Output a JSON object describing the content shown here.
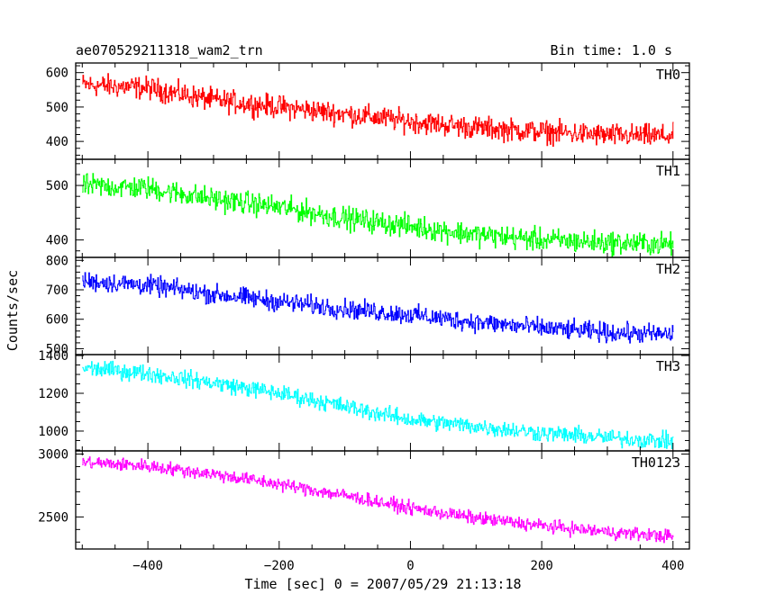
{
  "chart_data": {
    "type": "line",
    "title": "ae070529211318_wam2_trn",
    "bin_time": "Bin time: 1.0 s",
    "xlabel": "Time [sec] 0 = 2007/05/29 21:13:18",
    "ylabel": "Counts/sec",
    "xlim": [
      -510,
      425
    ],
    "x_start": -500,
    "x_end": 400,
    "x_ticks": [
      -400,
      -200,
      0,
      200,
      400
    ],
    "grid": false,
    "series": [
      {
        "name": "TH0",
        "color": "#ff0000",
        "ylim": [
          348,
          628
        ],
        "y_ticks": [
          400,
          500,
          600
        ],
        "trend": [
          [
            -500,
            565
          ],
          [
            -400,
            555
          ],
          [
            -300,
            520
          ],
          [
            -200,
            500
          ],
          [
            -100,
            480
          ],
          [
            0,
            458
          ],
          [
            100,
            440
          ],
          [
            200,
            428
          ],
          [
            300,
            418
          ],
          [
            400,
            415
          ]
        ],
        "noise": 28
      },
      {
        "name": "TH1",
        "color": "#00ff00",
        "ylim": [
          368,
          548
        ],
        "y_ticks": [
          400,
          500
        ],
        "trend": [
          [
            -500,
            500
          ],
          [
            -400,
            495
          ],
          [
            -300,
            475
          ],
          [
            -200,
            460
          ],
          [
            -100,
            440
          ],
          [
            0,
            425
          ],
          [
            100,
            410
          ],
          [
            200,
            400
          ],
          [
            300,
            395
          ],
          [
            400,
            392
          ]
        ],
        "noise": 18
      },
      {
        "name": "TH2",
        "color": "#0000ff",
        "ylim": [
          480,
          810
        ],
        "y_ticks": [
          500,
          600,
          700,
          800
        ],
        "trend": [
          [
            -500,
            730
          ],
          [
            -400,
            715
          ],
          [
            -300,
            685
          ],
          [
            -200,
            660
          ],
          [
            -100,
            635
          ],
          [
            0,
            615
          ],
          [
            100,
            590
          ],
          [
            200,
            570
          ],
          [
            300,
            555
          ],
          [
            400,
            548
          ]
        ],
        "noise": 28
      },
      {
        "name": "TH3",
        "color": "#00ffff",
        "ylim": [
          895,
          1405
        ],
        "y_ticks": [
          1000,
          1200,
          1400
        ],
        "trend": [
          [
            -500,
            1335
          ],
          [
            -400,
            1305
          ],
          [
            -300,
            1255
          ],
          [
            -200,
            1200
          ],
          [
            -100,
            1130
          ],
          [
            0,
            1060
          ],
          [
            100,
            1025
          ],
          [
            200,
            990
          ],
          [
            300,
            965
          ],
          [
            400,
            945
          ]
        ],
        "noise": 38
      },
      {
        "name": "TH0123",
        "color": "#ff00ff",
        "ylim": [
          2245,
          3025
        ],
        "y_ticks": [
          2500,
          3000
        ],
        "trend": [
          [
            -500,
            2935
          ],
          [
            -400,
            2905
          ],
          [
            -300,
            2840
          ],
          [
            -200,
            2760
          ],
          [
            -100,
            2670
          ],
          [
            0,
            2570
          ],
          [
            100,
            2490
          ],
          [
            200,
            2430
          ],
          [
            300,
            2380
          ],
          [
            400,
            2345
          ]
        ],
        "noise": 45
      }
    ]
  }
}
